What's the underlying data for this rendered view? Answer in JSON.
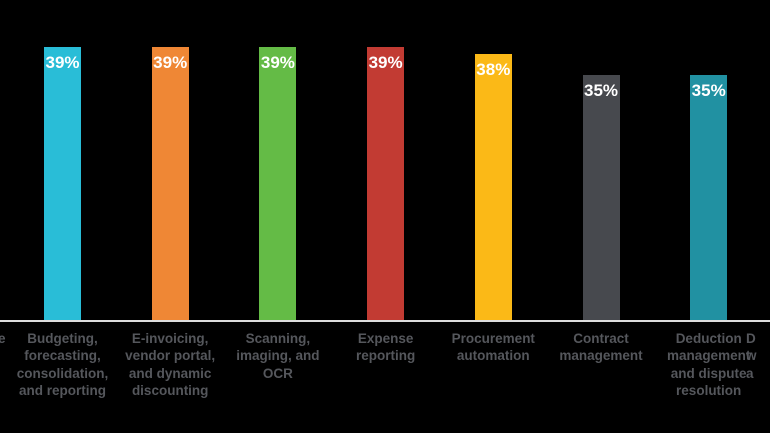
{
  "chart_data": {
    "type": "bar",
    "title": "",
    "xlabel": "",
    "ylabel": "",
    "grid": false,
    "legend": false,
    "ylim": [
      0,
      39
    ],
    "background_color": "#000000",
    "axis_line_color": "#DDDDDD",
    "value_label_color": "#FFFFFF",
    "category_label_color": "#55575C",
    "categories": [
      "Budgeting, forecasting, consolidation, and reporting",
      "E-invoicing, vendor portal, and dynamic discounting",
      "Scanning, imaging, and OCR",
      "Expense reporting",
      "Procurement automation",
      "Contract management",
      "Deduction management and dispute resolution"
    ],
    "values": [
      39,
      39,
      39,
      39,
      38,
      35,
      35
    ],
    "bars": [
      {
        "value": 39,
        "value_label": "39%",
        "color": "#29BDD7",
        "label_lines": [
          "Budgeting,",
          "forecasting,",
          "consolidation,",
          "and reporting"
        ]
      },
      {
        "value": 39,
        "value_label": "39%",
        "color": "#EF8735",
        "label_lines": [
          "E-invoicing,",
          "vendor portal,",
          "and dynamic",
          "discounting"
        ]
      },
      {
        "value": 39,
        "value_label": "39%",
        "color": "#64BB46",
        "label_lines": [
          "Scanning,",
          "imaging, and",
          "OCR"
        ]
      },
      {
        "value": 39,
        "value_label": "39%",
        "color": "#C23B33",
        "label_lines": [
          "Expense",
          "reporting"
        ]
      },
      {
        "value": 38,
        "value_label": "38%",
        "color": "#FBB917",
        "label_lines": [
          "Procurement",
          "automation"
        ]
      },
      {
        "value": 35,
        "value_label": "35%",
        "color": "#47494E",
        "label_lines": [
          "Contract",
          "management"
        ]
      },
      {
        "value": 35,
        "value_label": "35%",
        "color": "#2191A2",
        "label_lines": [
          "Deduction",
          "management",
          "and dispute",
          "resolution"
        ]
      }
    ],
    "cropped_label_left": "e",
    "cropped_label_right_lines": [
      "D",
      "w",
      "a"
    ]
  }
}
